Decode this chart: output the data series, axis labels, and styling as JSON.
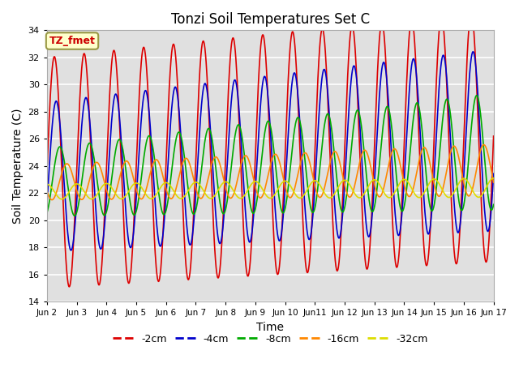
{
  "title": "Tonzi Soil Temperatures Set C",
  "xlabel": "Time",
  "ylabel": "Soil Temperature (C)",
  "ylim": [
    14,
    34
  ],
  "yticks": [
    14,
    16,
    18,
    20,
    22,
    24,
    26,
    28,
    30,
    32,
    34
  ],
  "series": [
    {
      "label": "-2cm",
      "color": "#dd0000",
      "amplitude": 8.5,
      "mean": 23.5,
      "phase_shift": 0.0,
      "trend_slope": 0.18,
      "amp_growth": 0.05
    },
    {
      "label": "-4cm",
      "color": "#0000cc",
      "amplitude": 5.5,
      "mean": 23.2,
      "phase_shift": 0.06,
      "trend_slope": 0.18,
      "amp_growth": 0.08
    },
    {
      "label": "-8cm",
      "color": "#00aa00",
      "amplitude": 2.5,
      "mean": 22.8,
      "phase_shift": 0.18,
      "trend_slope": 0.15,
      "amp_growth": 0.12
    },
    {
      "label": "-16cm",
      "color": "#ff8800",
      "amplitude": 1.3,
      "mean": 22.8,
      "phase_shift": 0.42,
      "trend_slope": 0.06,
      "amp_growth": 0.04
    },
    {
      "label": "-32cm",
      "color": "#dddd00",
      "amplitude": 0.55,
      "mean": 22.1,
      "phase_shift": 0.75,
      "trend_slope": 0.02,
      "amp_growth": 0.01
    }
  ],
  "bg_color": "#e0e0e0",
  "annotation_text": "TZ_fmet",
  "annotation_color": "#cc0000",
  "annotation_bg": "#ffffcc",
  "annotation_border": "#999944"
}
